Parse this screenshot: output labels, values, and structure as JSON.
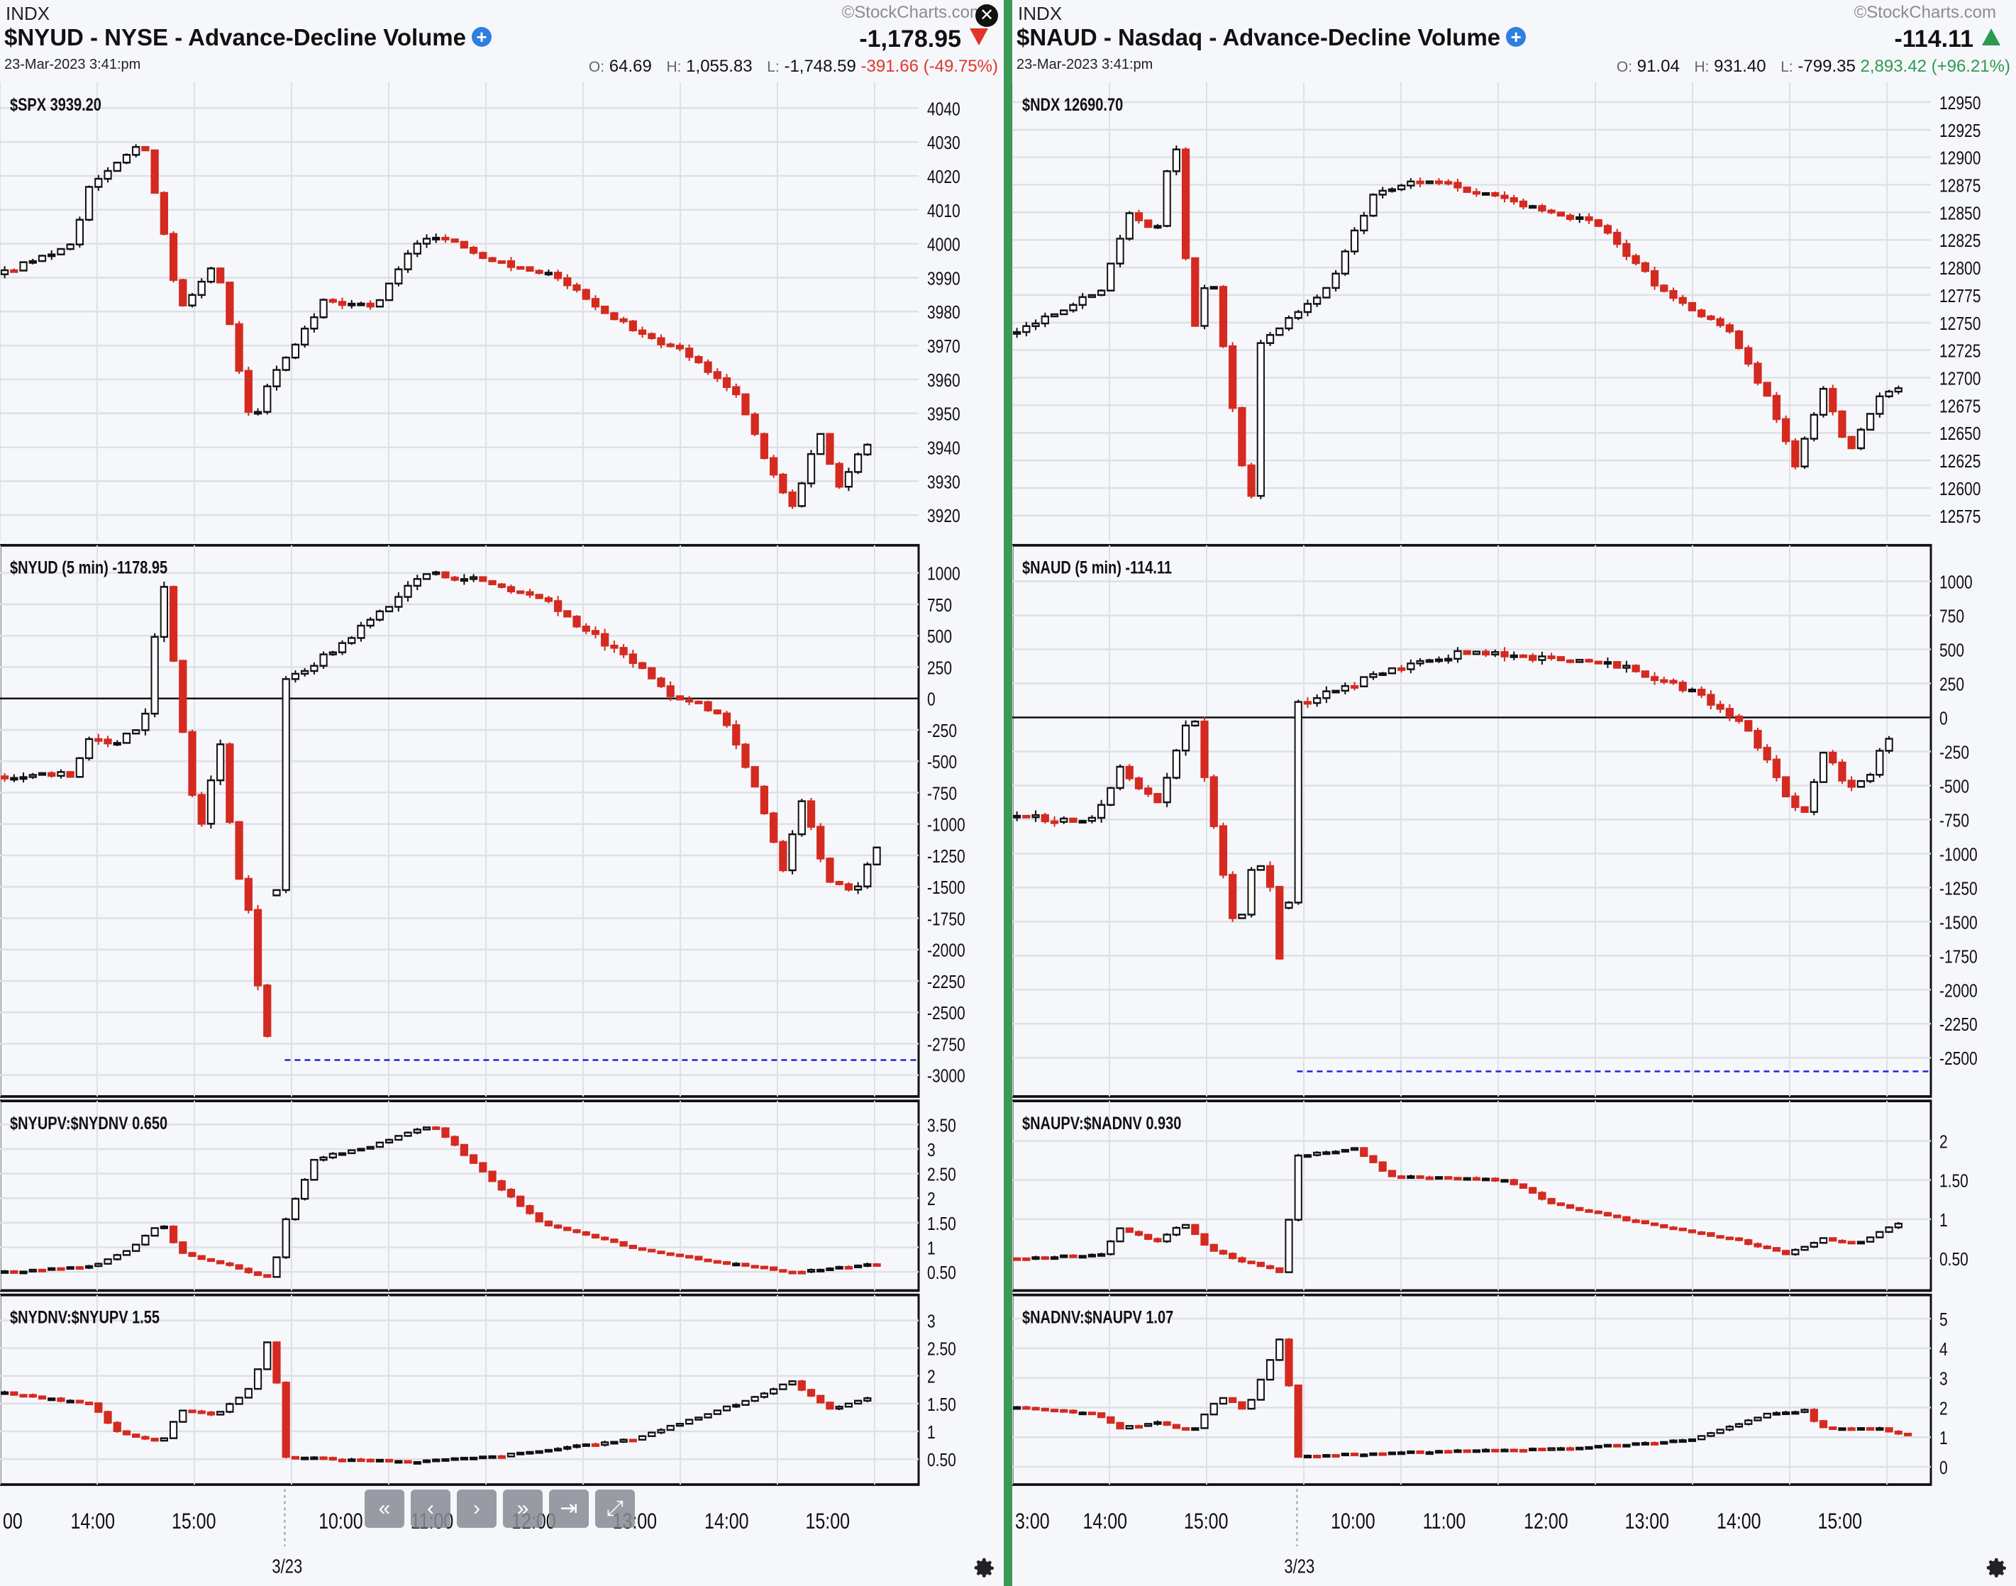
{
  "left": {
    "exchange": "INDX",
    "watermark": "©StockCharts.com",
    "title": "$NYUD - NYSE - Advance-Decline Volume",
    "last": "-1,178.95",
    "direction": "down",
    "date": "23-Mar-2023 3:41:pm",
    "ohlc": {
      "o_label": "O:",
      "o": "64.69",
      "h_label": "H:",
      "h": "1,055.83",
      "l_label": "L:",
      "l": "-1,748.59",
      "change": "-391.66 (-49.75%)"
    },
    "x_labels": [
      "00",
      "14:00",
      "15:00",
      "10:00",
      "11:00",
      "12:00",
      "13:00",
      "14:00",
      "15:00"
    ],
    "date_marker": "3/23"
  },
  "right": {
    "exchange": "INDX",
    "watermark": "©StockCharts.com",
    "title": "$NAUD - Nasdaq - Advance-Decline Volume",
    "last": "-114.11",
    "direction": "up",
    "date": "23-Mar-2023 3:41:pm",
    "ohlc": {
      "o_label": "O:",
      "o": "91.04",
      "h_label": "H:",
      "h": "931.40",
      "l_label": "L:",
      "l": "-799.35",
      "change": "2,893.42 (+96.21%)"
    },
    "x_labels": [
      "3:00",
      "14:00",
      "15:00",
      "10:00",
      "11:00",
      "12:00",
      "13:00",
      "14:00",
      "15:00"
    ],
    "date_marker": "3/23"
  },
  "colors": {
    "up": "#ffffff",
    "down": "#d42a20",
    "zero_line": "#111111",
    "reference_line": "#2222dd",
    "divider": "#3a9a55"
  },
  "nav_buttons": [
    "first-icon",
    "prev-icon",
    "next-icon",
    "fast-forward-icon",
    "end-icon",
    "expand-icon"
  ],
  "chart_data": [
    {
      "type": "candlestick",
      "panel": "left",
      "label": "$SPX 3939.20",
      "ylim": [
        3915,
        4045
      ],
      "yticks": [
        4040,
        4030,
        4020,
        4010,
        4000,
        3990,
        3980,
        3970,
        3960,
        3950,
        3940,
        3930,
        3920
      ],
      "anchors": [
        [
          0,
          3991
        ],
        [
          0.08,
          4000
        ],
        [
          0.1,
          4018
        ],
        [
          0.16,
          4030
        ],
        [
          0.2,
          3980
        ],
        [
          0.24,
          3995
        ],
        [
          0.28,
          3945
        ],
        [
          0.3,
          3960
        ],
        [
          0.36,
          3983
        ],
        [
          0.42,
          3982
        ],
        [
          0.46,
          4000
        ],
        [
          0.48,
          4003
        ],
        [
          0.55,
          3995
        ],
        [
          0.62,
          3990
        ],
        [
          0.7,
          3975
        ],
        [
          0.76,
          3968
        ],
        [
          0.82,
          3955
        ],
        [
          0.85,
          3936
        ],
        [
          0.88,
          3922
        ],
        [
          0.91,
          3945
        ],
        [
          0.93,
          3928
        ],
        [
          0.96,
          3940
        ]
      ]
    },
    {
      "type": "candlestick",
      "panel": "left",
      "label": "$NYUD (5 min) -1178.95",
      "ylim": [
        -3100,
        1150
      ],
      "yticks": [
        1000,
        750,
        500,
        250,
        0,
        -250,
        -500,
        -750,
        -1000,
        -1250,
        -1500,
        -1750,
        -2000,
        -2250,
        -2500,
        -2750,
        -3000
      ],
      "zero_line": 0,
      "reference_line": -2880,
      "session_gap": 0.31,
      "anchors": [
        [
          0,
          -620
        ],
        [
          0.08,
          -600
        ],
        [
          0.1,
          -300
        ],
        [
          0.13,
          -350
        ],
        [
          0.16,
          -200
        ],
        [
          0.18,
          1000
        ],
        [
          0.2,
          -100
        ],
        [
          0.22,
          -1100
        ],
        [
          0.245,
          -350
        ],
        [
          0.26,
          -1300
        ],
        [
          0.275,
          -1600
        ],
        [
          0.29,
          -2500
        ],
        [
          0.305,
          -2880
        ],
        [
          0.31,
          100
        ],
        [
          0.37,
          380
        ],
        [
          0.44,
          800
        ],
        [
          0.47,
          1000
        ],
        [
          0.53,
          950
        ],
        [
          0.6,
          800
        ],
        [
          0.65,
          550
        ],
        [
          0.7,
          300
        ],
        [
          0.75,
          0
        ],
        [
          0.8,
          -100
        ],
        [
          0.84,
          -700
        ],
        [
          0.87,
          -1350
        ],
        [
          0.89,
          -800
        ],
        [
          0.92,
          -1450
        ],
        [
          0.95,
          -1550
        ],
        [
          0.97,
          -1180
        ]
      ]
    },
    {
      "type": "candlestick",
      "panel": "left",
      "label": "$NYUPV:$NYDNV 0.650",
      "ylim": [
        0.3,
        3.8
      ],
      "yticks": [
        3.5,
        3.0,
        2.5,
        2.0,
        1.5,
        1.0,
        0.5
      ],
      "anchors": [
        [
          0,
          0.5
        ],
        [
          0.1,
          0.6
        ],
        [
          0.14,
          0.9
        ],
        [
          0.18,
          1.5
        ],
        [
          0.2,
          0.9
        ],
        [
          0.24,
          0.7
        ],
        [
          0.305,
          0.35
        ],
        [
          0.31,
          1.3
        ],
        [
          0.35,
          2.8
        ],
        [
          0.42,
          3.1
        ],
        [
          0.48,
          3.5
        ],
        [
          0.55,
          2.3
        ],
        [
          0.6,
          1.5
        ],
        [
          0.7,
          1.0
        ],
        [
          0.8,
          0.7
        ],
        [
          0.88,
          0.5
        ],
        [
          0.97,
          0.65
        ]
      ]
    },
    {
      "type": "candlestick",
      "panel": "left",
      "label": "$NYDNV:$NYUPV 1.55",
      "ylim": [
        0.2,
        3.3
      ],
      "yticks": [
        3.0,
        2.5,
        2.0,
        1.5,
        1.0,
        0.5
      ],
      "anchors": [
        [
          0,
          1.7
        ],
        [
          0.1,
          1.5
        ],
        [
          0.13,
          1.0
        ],
        [
          0.18,
          0.8
        ],
        [
          0.2,
          1.4
        ],
        [
          0.24,
          1.3
        ],
        [
          0.28,
          1.8
        ],
        [
          0.305,
          3.0
        ],
        [
          0.31,
          0.55
        ],
        [
          0.45,
          0.45
        ],
        [
          0.55,
          0.55
        ],
        [
          0.7,
          0.85
        ],
        [
          0.82,
          1.5
        ],
        [
          0.88,
          1.9
        ],
        [
          0.92,
          1.4
        ],
        [
          0.96,
          1.6
        ]
      ]
    },
    {
      "type": "candlestick",
      "panel": "right",
      "label": "$NDX 12690.70",
      "ylim": [
        12560,
        12960
      ],
      "yticks": [
        12950,
        12925,
        12900,
        12875,
        12850,
        12825,
        12800,
        12775,
        12750,
        12725,
        12700,
        12675,
        12650,
        12625,
        12600,
        12575
      ],
      "anchors": [
        [
          0,
          12740
        ],
        [
          0.1,
          12780
        ],
        [
          0.13,
          12850
        ],
        [
          0.16,
          12830
        ],
        [
          0.18,
          12930
        ],
        [
          0.2,
          12740
        ],
        [
          0.22,
          12800
        ],
        [
          0.24,
          12700
        ],
        [
          0.255,
          12620
        ],
        [
          0.265,
          12575
        ],
        [
          0.27,
          12730
        ],
        [
          0.35,
          12780
        ],
        [
          0.4,
          12865
        ],
        [
          0.46,
          12880
        ],
        [
          0.55,
          12860
        ],
        [
          0.65,
          12840
        ],
        [
          0.72,
          12780
        ],
        [
          0.8,
          12740
        ],
        [
          0.84,
          12680
        ],
        [
          0.87,
          12620
        ],
        [
          0.9,
          12690
        ],
        [
          0.93,
          12630
        ],
        [
          0.96,
          12680
        ],
        [
          0.98,
          12690
        ]
      ]
    },
    {
      "type": "candlestick",
      "panel": "right",
      "label": "$NAUD (5 min) -114.11",
      "ylim": [
        -2720,
        1200
      ],
      "yticks": [
        1000,
        750,
        500,
        250,
        0,
        -250,
        -500,
        -750,
        -1000,
        -1250,
        -1500,
        -1750,
        -2000,
        -2250,
        -2500
      ],
      "zero_line": 0,
      "reference_line": -2600,
      "session_gap": 0.31,
      "anchors": [
        [
          0,
          -730
        ],
        [
          0.09,
          -760
        ],
        [
          0.12,
          -350
        ],
        [
          0.16,
          -650
        ],
        [
          0.2,
          100
        ],
        [
          0.22,
          -700
        ],
        [
          0.25,
          -1620
        ],
        [
          0.27,
          -1000
        ],
        [
          0.29,
          -1300
        ],
        [
          0.3,
          -2000
        ],
        [
          0.305,
          -2600
        ],
        [
          0.31,
          80
        ],
        [
          0.4,
          300
        ],
        [
          0.5,
          480
        ],
        [
          0.58,
          440
        ],
        [
          0.68,
          380
        ],
        [
          0.76,
          170
        ],
        [
          0.82,
          -100
        ],
        [
          0.86,
          -600
        ],
        [
          0.88,
          -680
        ],
        [
          0.9,
          -250
        ],
        [
          0.93,
          -520
        ],
        [
          0.95,
          -470
        ],
        [
          0.97,
          -150
        ]
      ]
    },
    {
      "type": "candlestick",
      "panel": "right",
      "label": "$NAUPV:$NADNV 0.930",
      "ylim": [
        0.2,
        2.4
      ],
      "yticks": [
        2.0,
        1.5,
        1.0,
        0.5
      ],
      "anchors": [
        [
          0,
          0.5
        ],
        [
          0.1,
          0.55
        ],
        [
          0.12,
          0.9
        ],
        [
          0.16,
          0.7
        ],
        [
          0.19,
          0.95
        ],
        [
          0.22,
          0.6
        ],
        [
          0.26,
          0.45
        ],
        [
          0.305,
          0.3
        ],
        [
          0.31,
          1.8
        ],
        [
          0.38,
          1.9
        ],
        [
          0.42,
          1.55
        ],
        [
          0.55,
          1.5
        ],
        [
          0.6,
          1.2
        ],
        [
          0.7,
          0.95
        ],
        [
          0.8,
          0.75
        ],
        [
          0.86,
          0.55
        ],
        [
          0.9,
          0.75
        ],
        [
          0.94,
          0.7
        ],
        [
          0.98,
          0.93
        ]
      ]
    },
    {
      "type": "candlestick",
      "panel": "right",
      "label": "$NADNV:$NAUPV 1.07",
      "ylim": [
        -0.3,
        5.5
      ],
      "yticks": [
        5.0,
        4.0,
        3.0,
        2.0,
        1.0,
        0.0
      ],
      "anchors": [
        [
          0,
          2.0
        ],
        [
          0.09,
          1.8
        ],
        [
          0.12,
          1.3
        ],
        [
          0.16,
          1.5
        ],
        [
          0.2,
          1.2
        ],
        [
          0.23,
          2.4
        ],
        [
          0.26,
          1.9
        ],
        [
          0.305,
          4.8
        ],
        [
          0.31,
          0.35
        ],
        [
          0.45,
          0.5
        ],
        [
          0.6,
          0.6
        ],
        [
          0.75,
          0.9
        ],
        [
          0.84,
          1.8
        ],
        [
          0.88,
          1.9
        ],
        [
          0.9,
          1.3
        ],
        [
          0.96,
          1.3
        ],
        [
          0.99,
          1.07
        ]
      ]
    }
  ]
}
